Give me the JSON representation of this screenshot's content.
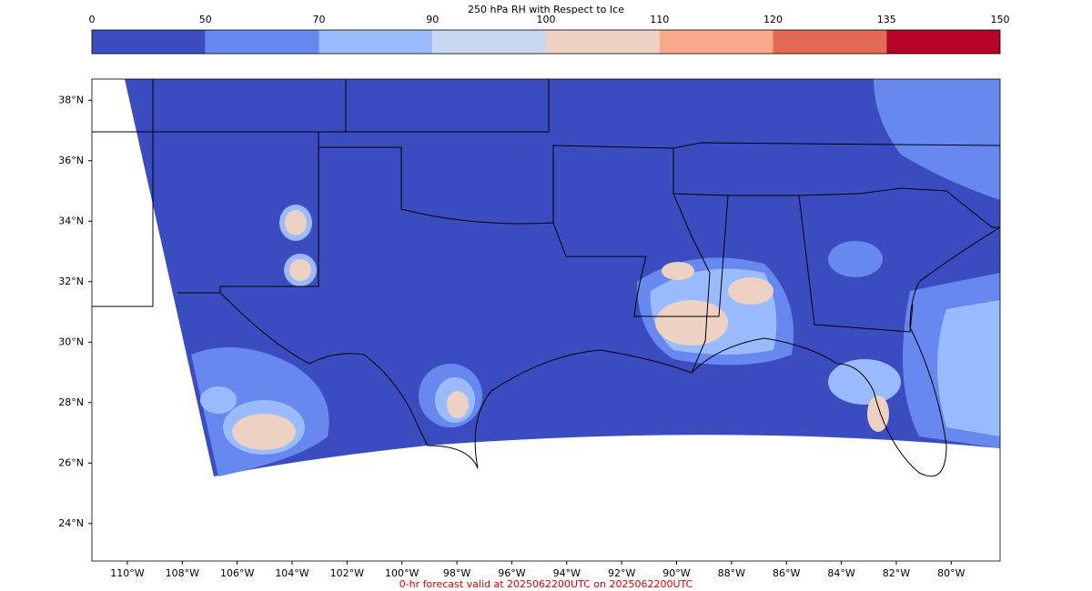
{
  "colorbar": {
    "title": "250 hPa RH with Respect to Ice",
    "ticks": [
      0,
      50,
      70,
      90,
      100,
      110,
      120,
      135,
      150
    ],
    "colors": [
      "#3b4cc0",
      "#6788ee",
      "#9abbff",
      "#c9d7f0",
      "#edd1c2",
      "#f7a889",
      "#e26952",
      "#b40426"
    ]
  },
  "map": {
    "ylim": [
      22.76,
      38.7
    ],
    "yticks": [
      {
        "value": 38,
        "label": "38°N"
      },
      {
        "value": 36,
        "label": "36°N"
      },
      {
        "value": 34,
        "label": "34°N"
      },
      {
        "value": 32,
        "label": "32°N"
      },
      {
        "value": 30,
        "label": "30°N"
      },
      {
        "value": 28,
        "label": "28°N"
      },
      {
        "value": 26,
        "label": "26°N"
      },
      {
        "value": 24,
        "label": "24°N"
      }
    ],
    "xlim": [
      -111.29,
      -78.22
    ],
    "xticks": [
      {
        "value": -110,
        "label": "110°W"
      },
      {
        "value": -108,
        "label": "108°W"
      },
      {
        "value": -106,
        "label": "106°W"
      },
      {
        "value": -104,
        "label": "104°W"
      },
      {
        "value": -102,
        "label": "102°W"
      },
      {
        "value": -100,
        "label": "100°W"
      },
      {
        "value": -98,
        "label": "98°W"
      },
      {
        "value": -96,
        "label": "96°W"
      },
      {
        "value": -94,
        "label": "94°W"
      },
      {
        "value": -92,
        "label": "92°W"
      },
      {
        "value": -90,
        "label": "90°W"
      },
      {
        "value": -88,
        "label": "88°W"
      },
      {
        "value": -86,
        "label": "86°W"
      },
      {
        "value": -84,
        "label": "84°W"
      },
      {
        "value": -82,
        "label": "82°W"
      },
      {
        "value": -80,
        "label": "80°W"
      }
    ]
  },
  "footer": "0-hr forecast valid at 2025062200UTC on 2025062200UTC"
}
